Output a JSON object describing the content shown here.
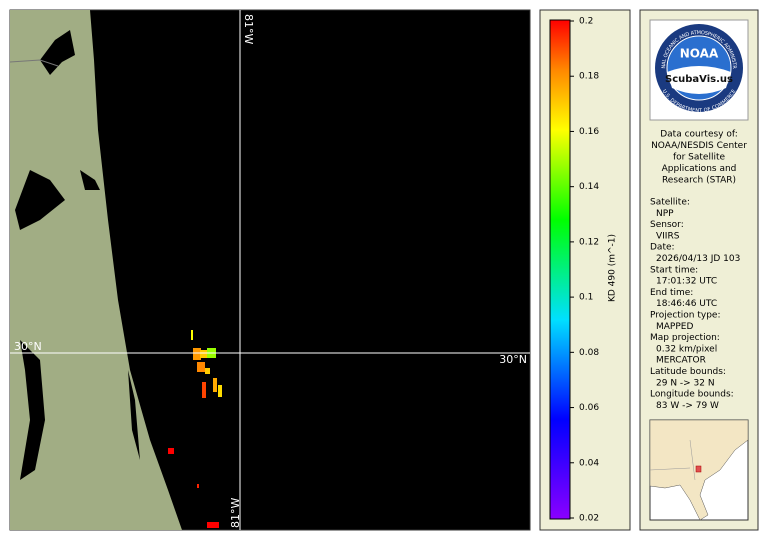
{
  "map": {
    "lat_label_left": "30°N",
    "lat_label_right": "30°N",
    "lon_label_top": "81°W",
    "lon_label_bottom": "81°W"
  },
  "colorbar": {
    "label": "KD 490 (m^-1)",
    "range": [
      0.02,
      0.2
    ],
    "ticks": [
      0.02,
      0.04,
      0.06,
      0.08,
      0.1,
      0.12,
      0.14,
      0.16,
      0.18,
      0.2
    ]
  },
  "logo": {
    "name": "NOAA",
    "ring_top": "NATIONAL OCEANIC AND ATMOSPHERIC ADMINISTRATION",
    "ring_bottom": "U.S. DEPARTMENT OF COMMERCE",
    "watermark": "ScubaVis.us"
  },
  "info": {
    "credit": [
      "Data courtesy of:",
      "NOAA/NESDIS Center",
      "for Satellite",
      "Applications and",
      "Research (STAR)"
    ],
    "fields": [
      {
        "label": "Satellite:",
        "values": [
          "NPP"
        ]
      },
      {
        "label": "Sensor:",
        "values": [
          "VIIRS"
        ]
      },
      {
        "label": "Date:",
        "values": [
          "2026/04/13 JD 103"
        ]
      },
      {
        "label": "Start time:",
        "values": [
          "17:01:32 UTC"
        ]
      },
      {
        "label": "End time:",
        "values": [
          "18:46:46 UTC"
        ]
      },
      {
        "label": "Projection type:",
        "values": [
          "MAPPED"
        ]
      },
      {
        "label": "Map projection:",
        "values": [
          "0.32 km/pixel",
          "MERCATOR"
        ]
      },
      {
        "label": "Latitude bounds:",
        "values": [
          "29 N -> 32 N"
        ]
      },
      {
        "label": "Longitude bounds:",
        "values": [
          "83 W -> 79 W"
        ]
      }
    ]
  }
}
